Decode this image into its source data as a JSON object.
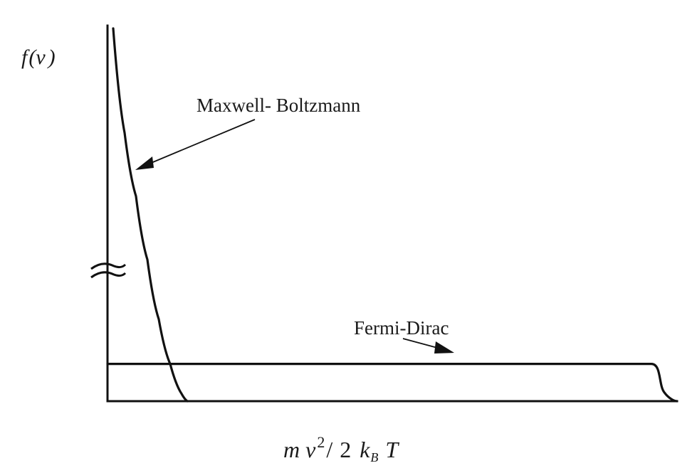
{
  "chart_data": {
    "type": "line",
    "ylabel": {
      "f": "f",
      "open": "(",
      "v": "v",
      "close": ")"
    },
    "xlabel": {
      "m": "m",
      "v": "v",
      "exp": "2",
      "slash": "/",
      "two": "2",
      "k": "k",
      "sub": "B",
      "T": "T"
    },
    "xlim": [
      0,
      1
    ],
    "ylim": [
      0,
      1
    ],
    "axis_break": true,
    "series": [
      {
        "name": "Maxwell- Boltzmann",
        "x": [
          0.0,
          0.02,
          0.04,
          0.06,
          0.08,
          0.1,
          0.12,
          0.14
        ],
        "y": [
          1.0,
          0.72,
          0.55,
          0.38,
          0.22,
          0.1,
          0.02,
          0.0
        ]
      },
      {
        "name": "Fermi-Dirac",
        "x": [
          0.0,
          0.2,
          0.4,
          0.6,
          0.8,
          0.98,
          1.0
        ],
        "y": [
          0.1,
          0.1,
          0.1,
          0.1,
          0.1,
          0.1,
          0.0
        ]
      }
    ]
  }
}
